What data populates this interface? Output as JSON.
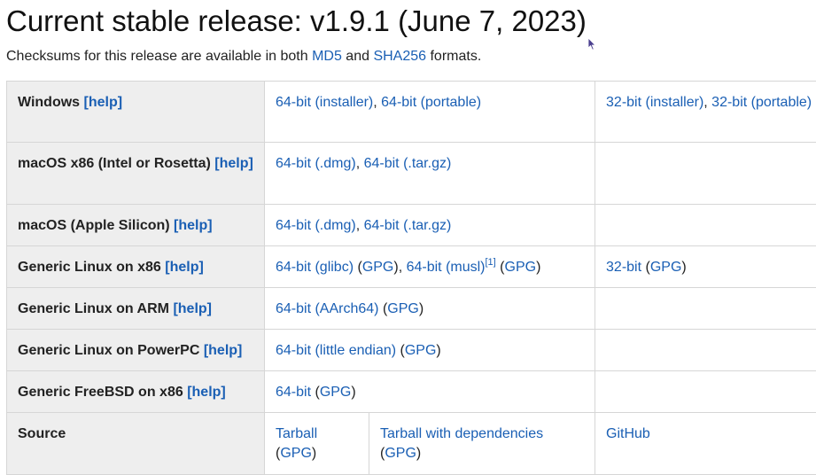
{
  "heading": "Current stable release: v1.9.1 (June 7, 2023)",
  "intro": {
    "before": "Checksums for this release are available in both ",
    "md5": "MD5",
    "and": " and ",
    "sha256": "SHA256",
    "after": " formats."
  },
  "help_label": "[help]",
  "windows": {
    "label": "Windows",
    "link_64_installer": "64-bit (installer)",
    "link_64_portable": "64-bit (portable)",
    "link_32_installer": "32-bit (installer)",
    "link_32_portable": "32-bit (portable)"
  },
  "macos_x86": {
    "label": "macOS x86 (Intel or Rosetta)",
    "link_dmg": "64-bit (.dmg)",
    "link_targz": "64-bit (.tar.gz)"
  },
  "macos_silicon": {
    "label": "macOS (Apple Silicon)",
    "link_dmg": "64-bit (.dmg)",
    "link_targz": "64-bit (.tar.gz)"
  },
  "linux_x86": {
    "label": "Generic Linux on x86",
    "link_glibc": "64-bit (glibc)",
    "link_musl": "64-bit (musl)",
    "musl_note": "[1]",
    "link_32": "32-bit"
  },
  "linux_arm": {
    "label": "Generic Linux on ARM",
    "link_aarch64": "64-bit (AArch64)"
  },
  "linux_ppc": {
    "label": "Generic Linux on PowerPC",
    "link_le": "64-bit (little endian)"
  },
  "freebsd": {
    "label": "Generic FreeBSD on x86",
    "link_64": "64-bit"
  },
  "source": {
    "label": "Source",
    "tarball": "Tarball",
    "tarball_deps": "Tarball with dependencies",
    "github": "GitHub"
  },
  "gpg": "GPG",
  "punct": {
    "comma": ", ",
    "open_paren": "(",
    "close_paren": ")",
    "space_open_paren": " (",
    "space": " "
  },
  "colors": {
    "link": "#1a5fb4",
    "header_bg": "#eeeeee",
    "border": "#d6d6d6"
  }
}
